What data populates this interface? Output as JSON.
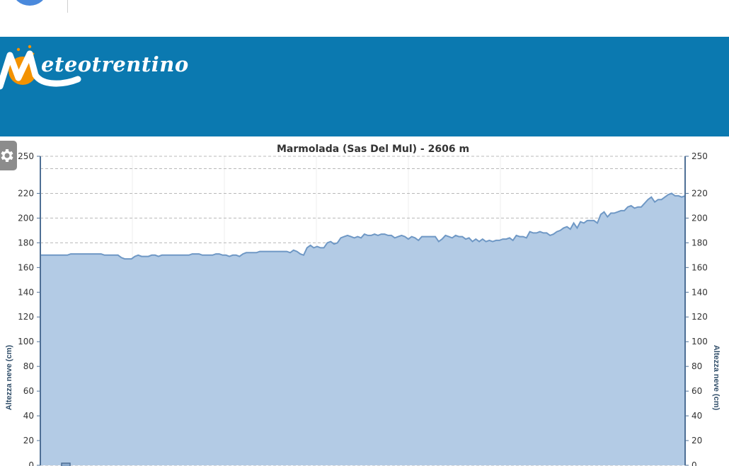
{
  "header": {
    "brand": "eteotrentino",
    "logo_name": "meteotrentino-logo",
    "background": "#0b79b0"
  },
  "toolbar": {
    "settings_icon": "gear-icon"
  },
  "chart_data": {
    "type": "area",
    "title": "Marmolada (Sas Del Mul) - 2606 m",
    "ylabel": "Altezza neve (cm)",
    "ylabel_right": "Altezza neve (cm)",
    "ylim": [
      0,
      250
    ],
    "yticks": [
      0,
      20,
      40,
      60,
      80,
      100,
      120,
      140,
      160,
      180,
      200,
      220,
      250
    ],
    "grid": true,
    "legend_position": "bottom-left",
    "color": "#6f98c5",
    "fill": "#b3cbe5",
    "series": [
      {
        "values": [
          170,
          170,
          170,
          170,
          170,
          170,
          170,
          170,
          170,
          171,
          171,
          171,
          171,
          171,
          171,
          171,
          171,
          171,
          171,
          170,
          170,
          170,
          170,
          170,
          168,
          167,
          167,
          167,
          169,
          170,
          169,
          169,
          169,
          170,
          170,
          169,
          170,
          170,
          170,
          170,
          170,
          170,
          170,
          170,
          170,
          171,
          171,
          171,
          170,
          170,
          170,
          170,
          171,
          171,
          170,
          170,
          169,
          170,
          170,
          169,
          171,
          172,
          172,
          172,
          172,
          173,
          173,
          173,
          173,
          173,
          173,
          173,
          173,
          173,
          172,
          174,
          173,
          171,
          170,
          176,
          178,
          176,
          177,
          176,
          176,
          180,
          181,
          179,
          180,
          184,
          185,
          186,
          185,
          184,
          185,
          184,
          187,
          186,
          186,
          187,
          186,
          187,
          187,
          186,
          186,
          184,
          185,
          186,
          185,
          183,
          185,
          184,
          182,
          185,
          185,
          185,
          185,
          185,
          181,
          183,
          186,
          185,
          184,
          186,
          185,
          185,
          183,
          184,
          181,
          183,
          181,
          183,
          181,
          182,
          181,
          182,
          182,
          183,
          183,
          184,
          182,
          186,
          185,
          185,
          184,
          189,
          188,
          188,
          189,
          188,
          188,
          186,
          187,
          189,
          190,
          192,
          193,
          191,
          196,
          192,
          197,
          196,
          198,
          198,
          198,
          196,
          203,
          205,
          201,
          204,
          204,
          205,
          206,
          206,
          209,
          210,
          208,
          209,
          209,
          212,
          215,
          217,
          213,
          215,
          215,
          217,
          219,
          220,
          218,
          218,
          217,
          218
        ]
      }
    ]
  }
}
